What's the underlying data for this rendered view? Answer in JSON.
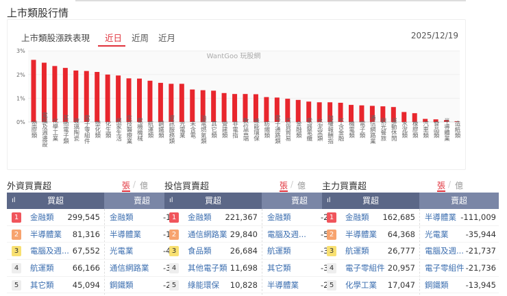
{
  "page_title": "上市類股行情",
  "card": {
    "title": "上市類股漲跌表現",
    "tabs": [
      "近日",
      "近周",
      "近月"
    ],
    "active_tab": "近日",
    "date": "2025/12/19",
    "watermark": "WantGoo 玩股網"
  },
  "chart_data": {
    "type": "bar",
    "yticks": [
      "0%",
      "1%",
      "2%",
      "3%"
    ],
    "ylim": [
      0,
      3
    ],
    "color": "#e8262d",
    "categories": [
      "塑膠類",
      "電腦及週邊設",
      "化學工業",
      "其他電子類",
      "玻璃陶瓷",
      "電子零組件",
      "塑化類",
      "化生類",
      "居家生活",
      "生技醫療業",
      "電機機械",
      "航運類",
      "鋼鐵類",
      "資訊服務類",
      "光電業",
      "未含電",
      "油電燃氣類",
      "其它類",
      "營建類",
      "非電指",
      "數位雲端",
      "綠能環保",
      "紡織類",
      "電子通路類",
      "百貨貿易",
      "金融類",
      "電器電纜",
      "水泥窯類",
      "加權報酬指",
      "不含金融",
      "機電類",
      "電子類",
      "通信網路業",
      "觀光餐旅",
      "運動休閒",
      "水泥類",
      "橡膠類",
      "汽車類",
      "食品類",
      "半導體業",
      "造紙類"
    ],
    "values": [
      2.62,
      2.5,
      2.36,
      2.28,
      2.17,
      2.15,
      2.11,
      2.0,
      1.96,
      1.84,
      1.83,
      1.74,
      1.65,
      1.61,
      1.61,
      1.37,
      1.34,
      1.32,
      1.22,
      1.18,
      1.18,
      1.17,
      1.05,
      1.03,
      0.98,
      0.93,
      0.86,
      0.83,
      0.83,
      0.81,
      0.72,
      0.7,
      0.68,
      0.66,
      0.63,
      0.42,
      0.37,
      0.13,
      0.11,
      0.08,
      0.03
    ]
  },
  "units": {
    "shares": "張",
    "amount": "億",
    "sep": "/"
  },
  "rank_colors": [
    "#f0555c",
    "#f7a36e",
    "#f8e071",
    "#eeeeee",
    "#eeeeee"
  ],
  "tables": [
    {
      "title": "外資買賣超",
      "buy_header": "買超",
      "sell_header": "賣超",
      "buy": [
        {
          "rank": "1",
          "name": "金融類",
          "value": "299,545"
        },
        {
          "rank": "2",
          "name": "半導體業",
          "value": "81,316"
        },
        {
          "rank": "3",
          "name": "電腦及週...",
          "value": "67,552"
        },
        {
          "rank": "4",
          "name": "航運類",
          "value": "66,166"
        },
        {
          "rank": "5",
          "name": "其它類",
          "value": "45,094"
        }
      ],
      "sell": [
        {
          "name": "金融類",
          "value": "-15"
        },
        {
          "name": "半導體業",
          "value": "-12"
        },
        {
          "name": "光電業",
          "value": "-4"
        },
        {
          "name": "通信網路業",
          "value": "-3"
        },
        {
          "name": "鋼鐵類",
          "value": "-2"
        }
      ]
    },
    {
      "title": "投信買賣超",
      "buy_header": "買超",
      "sell_header": "賣超",
      "buy": [
        {
          "rank": "1",
          "name": "金融類",
          "value": "221,367"
        },
        {
          "rank": "2",
          "name": "通信網路業",
          "value": "29,840"
        },
        {
          "rank": "3",
          "name": "食品類",
          "value": "26,684"
        },
        {
          "rank": "4",
          "name": "其他電子類",
          "value": "11,698"
        },
        {
          "rank": "5",
          "name": "綠能環保",
          "value": "10,828"
        }
      ],
      "sell": [
        {
          "name": "金融類",
          "value": "-21"
        },
        {
          "name": "電腦及週...",
          "value": "-5"
        },
        {
          "name": "航運類",
          "value": "-3"
        },
        {
          "name": "其它類",
          "value": "-3"
        },
        {
          "name": "半導體業",
          "value": "-2"
        }
      ]
    },
    {
      "title": "主力買賣超",
      "buy_header": "買超",
      "sell_header": "賣超",
      "buy": [
        {
          "rank": "1",
          "name": "金融類",
          "value": "162,685"
        },
        {
          "rank": "2",
          "name": "半導體業",
          "value": "64,368"
        },
        {
          "rank": "3",
          "name": "航運類",
          "value": "26,777"
        },
        {
          "rank": "4",
          "name": "電子零組件",
          "value": "20,957"
        },
        {
          "rank": "5",
          "name": "化學工業",
          "value": "17,047"
        }
      ],
      "sell": [
        {
          "name": "半導體業",
          "value": "-111,009"
        },
        {
          "name": "光電業",
          "value": "-35,944"
        },
        {
          "name": "電腦及週...",
          "value": "-21,737"
        },
        {
          "name": "電子零組件",
          "value": "-21,736"
        },
        {
          "name": "鋼鐵類",
          "value": "-13,945"
        }
      ]
    }
  ]
}
